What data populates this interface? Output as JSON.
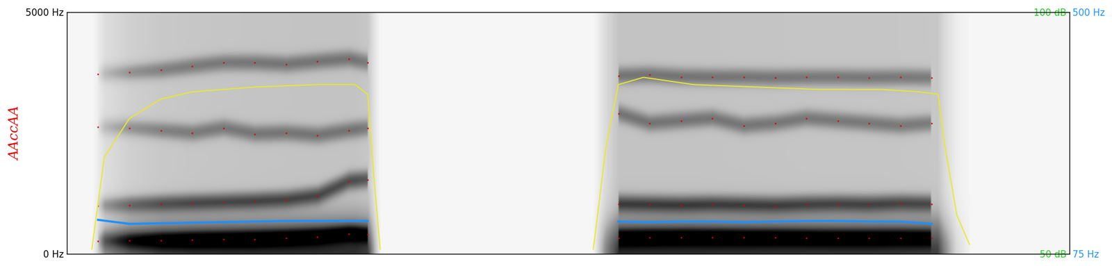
{
  "chart_data": {
    "type": "spectrogram",
    "ylabel": "AAccAA",
    "x": [
      0.05,
      0.1,
      0.15,
      0.2,
      0.25,
      0.3,
      0.35,
      0.4,
      0.45,
      0.48,
      0.68,
      0.88,
      0.93,
      0.98,
      1.03,
      1.08,
      1.13,
      1.18,
      1.23,
      1.28,
      1.33,
      1.38
    ],
    "xlim": [
      0,
      1.6
    ],
    "tick_labels": "y",
    "ylim": [
      0,
      5000
    ],
    "yticks": [
      {
        "value": 0,
        "label": "0 Hz"
      },
      {
        "value": 5000,
        "label": "5000 Hz"
      }
    ],
    "y2lim": [
      75,
      500
    ],
    "y2ticks": [
      {
        "value": 75,
        "label": "75 Hz"
      },
      {
        "value": 500,
        "label": "500 Hz"
      }
    ],
    "y3lim": [
      50,
      100
    ],
    "y3ticks": [
      {
        "value": 50,
        "label": "50 dB"
      },
      {
        "value": 100,
        "label": "100 dB"
      }
    ],
    "series": [
      {
        "type": "scatter",
        "marker": "point",
        "color": "#e00000",
        "values": [
          270,
          275,
          280,
          290,
          300,
          310,
          330,
          360,
          420,
          400,
          null,
          330,
          340,
          345,
          345,
          340,
          340,
          335,
          330,
          330,
          335,
          330
        ]
      },
      {
        "type": "scatter",
        "marker": "point",
        "color": "#e00000",
        "values": [
          1000,
          1010,
          1030,
          1050,
          1070,
          1090,
          1120,
          1200,
          1500,
          1540,
          null,
          1030,
          1020,
          1010,
          1020,
          1010,
          1000,
          1020,
          1030,
          1020,
          1040,
          1030
        ]
      },
      {
        "type": "scatter",
        "marker": "point",
        "color": "#e00000",
        "values": [
          2620,
          2600,
          2550,
          2500,
          2600,
          2480,
          2500,
          2450,
          2550,
          2600,
          null,
          2900,
          2700,
          2750,
          2800,
          2650,
          2700,
          2800,
          2750,
          2700,
          2650,
          2700
        ]
      },
      {
        "type": "scatter",
        "marker": "point",
        "color": "#e00000",
        "values": [
          3720,
          3750,
          3800,
          3880,
          3950,
          3950,
          3920,
          3980,
          4030,
          3950,
          null,
          3680,
          3700,
          3660,
          3650,
          3650,
          3640,
          3650,
          3650,
          3640,
          3650,
          3640
        ]
      },
      {
        "type": "line",
        "axis": "y2",
        "color": "#1e90ff",
        "line_style": "solid",
        "values": [
          135,
          128,
          129,
          130,
          131,
          132,
          133,
          133,
          133,
          133,
          null,
          132,
          131,
          132,
          132,
          131,
          132,
          133,
          133,
          132,
          132,
          128
        ]
      },
      {
        "type": "line",
        "axis": "y3",
        "color": "#e8e830",
        "line_style": "solid",
        "x": [
          0.04,
          0.06,
          0.1,
          0.15,
          0.2,
          0.3,
          0.4,
          0.46,
          0.48,
          0.49,
          0.5,
          0.68,
          0.84,
          0.86,
          0.88,
          0.92,
          1.0,
          1.1,
          1.2,
          1.3,
          1.36,
          1.39,
          1.4,
          1.42,
          1.44
        ],
        "values": [
          51,
          70,
          78,
          82,
          83.5,
          84.5,
          85,
          85,
          83,
          66,
          51,
          null,
          51,
          72,
          85,
          86.5,
          85,
          84.5,
          84,
          84,
          83.5,
          83,
          73,
          58,
          52
        ]
      }
    ]
  }
}
